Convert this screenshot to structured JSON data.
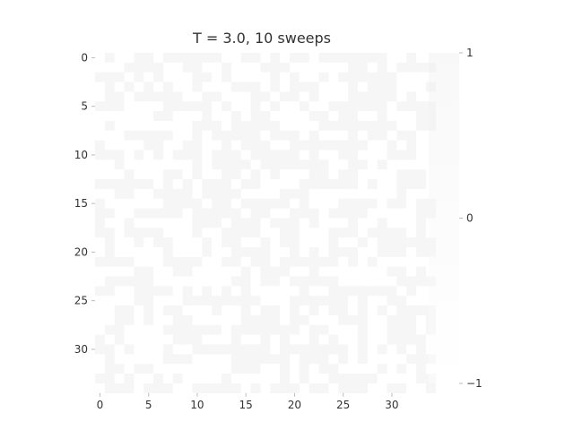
{
  "chart_data": {
    "type": "heatmap",
    "title": "T = 3.0, 10 sweeps",
    "grid_size": 35,
    "x_ticks": [
      0,
      5,
      10,
      15,
      20,
      25,
      30
    ],
    "y_ticks": [
      0,
      5,
      10,
      15,
      20,
      25,
      30
    ],
    "colorbar": {
      "ticks": [
        1,
        0,
        -1
      ],
      "labels": [
        "1",
        "0",
        "−1"
      ],
      "range": [
        -1,
        1
      ]
    },
    "colormap": {
      "min_color": "#ffffff",
      "max_color": "#ececec"
    },
    "grid": false
  }
}
